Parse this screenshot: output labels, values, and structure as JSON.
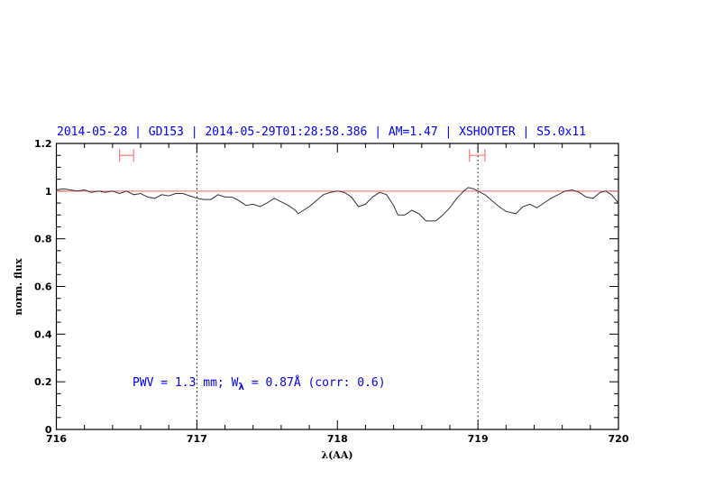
{
  "chart_data": {
    "type": "line",
    "title": "2014-05-28 | GD153 | 2014-05-29T01:28:58.386 | AM=1.47 | XSHOOTER | S5.0x11",
    "xlabel": "λ(AA)",
    "ylabel": "norm. flux",
    "xlim": [
      716,
      720
    ],
    "ylim": [
      0,
      1.2
    ],
    "x_ticks": [
      "716",
      "717",
      "718",
      "719",
      "720"
    ],
    "y_ticks": [
      "0",
      "0.2",
      "0.4",
      "0.6",
      "0.8",
      "1",
      "1.2"
    ],
    "grid": false,
    "annotation": {
      "prefix": "PWV = 1.3 mm; W",
      "subscript": "λ",
      "suffix": " = 0.87Å (corr: 0.6)"
    },
    "reference_line": {
      "y": 1.0,
      "color": "#ff6666"
    },
    "vertical_dotted_lines": [
      717,
      719
    ],
    "interval_markers": [
      [
        716.45,
        716.55
      ],
      [
        718.94,
        719.05
      ]
    ],
    "interval_marker_level": 1.15,
    "interval_color": "#ff7777",
    "text_color": "#0000ee",
    "series": [
      {
        "color": "#333333",
        "x": [
          716.0,
          716.05,
          716.1,
          716.15,
          716.2,
          716.25,
          716.3,
          716.35,
          716.4,
          716.45,
          716.5,
          716.55,
          716.6,
          716.65,
          716.7,
          716.75,
          716.8,
          716.85,
          716.9,
          716.95,
          717.0,
          717.05,
          717.1,
          717.15,
          717.2,
          717.25,
          717.3,
          717.35,
          717.4,
          717.45,
          717.5,
          717.55,
          717.6,
          717.65,
          717.7,
          717.72,
          717.8,
          717.85,
          717.9,
          717.95,
          718.0,
          718.05,
          718.1,
          718.15,
          718.2,
          718.25,
          718.3,
          718.35,
          718.4,
          718.43,
          718.48,
          718.53,
          718.58,
          718.63,
          718.7,
          718.75,
          718.8,
          718.85,
          718.9,
          718.93,
          718.97,
          719.0,
          719.05,
          719.1,
          719.15,
          719.2,
          719.27,
          719.32,
          719.37,
          719.42,
          719.47,
          719.52,
          719.57,
          719.62,
          719.67,
          719.72,
          719.77,
          719.82,
          719.87,
          719.91,
          719.95,
          720.0
        ],
        "y": [
          1.005,
          1.01,
          1.005,
          1.0,
          1.005,
          0.995,
          1.0,
          0.995,
          1.0,
          0.99,
          1.0,
          0.985,
          0.99,
          0.975,
          0.97,
          0.985,
          0.98,
          0.99,
          0.99,
          0.98,
          0.97,
          0.965,
          0.965,
          0.985,
          0.975,
          0.975,
          0.96,
          0.94,
          0.945,
          0.935,
          0.95,
          0.97,
          0.955,
          0.94,
          0.92,
          0.905,
          0.935,
          0.96,
          0.985,
          0.995,
          1.0,
          0.995,
          0.975,
          0.935,
          0.945,
          0.975,
          0.995,
          0.985,
          0.94,
          0.9,
          0.9,
          0.92,
          0.905,
          0.875,
          0.875,
          0.9,
          0.93,
          0.97,
          1.0,
          1.015,
          1.01,
          1.0,
          0.985,
          0.96,
          0.935,
          0.915,
          0.905,
          0.935,
          0.945,
          0.93,
          0.95,
          0.97,
          0.985,
          1.0,
          1.005,
          0.995,
          0.975,
          0.97,
          0.995,
          1.0,
          0.985,
          0.95
        ]
      }
    ]
  }
}
